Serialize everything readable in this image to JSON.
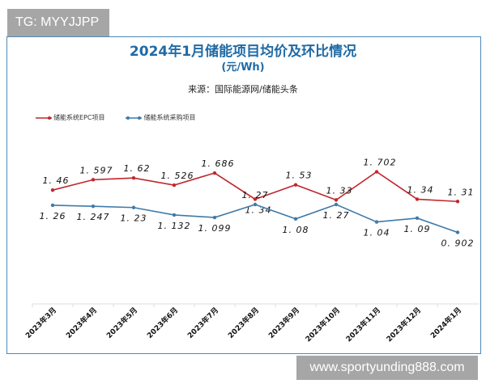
{
  "watermark_top": "TG: MYYJJPP",
  "watermark_bottom": "www.sportyunding888.com",
  "chart_data": {
    "type": "line",
    "title": "2024年1月储能项目均价及环比情况",
    "subtitle": "(元/Wh)",
    "source": "来源：国际能源网/储能头条",
    "categories": [
      "2023年3月",
      "2023年4月",
      "2023年5月",
      "2023年6月",
      "2023年7月",
      "2023年8月",
      "2023年9月",
      "2023年10月",
      "2023年11月",
      "2023年12月",
      "2024年1月"
    ],
    "series": [
      {
        "name": "储能系统EPC项目",
        "color": "#c0272d",
        "values": [
          1.46,
          1.597,
          1.62,
          1.526,
          1.686,
          1.34,
          1.53,
          1.33,
          1.702,
          1.34,
          1.31
        ]
      },
      {
        "name": "储能系统采购项目",
        "color": "#3f7aa8",
        "values": [
          1.26,
          1.247,
          1.23,
          1.132,
          1.099,
          1.27,
          1.08,
          1.27,
          1.04,
          1.09,
          0.902
        ]
      }
    ],
    "y_axis_visible": false,
    "grid": false,
    "legend": "top-left",
    "data_labels": true
  }
}
